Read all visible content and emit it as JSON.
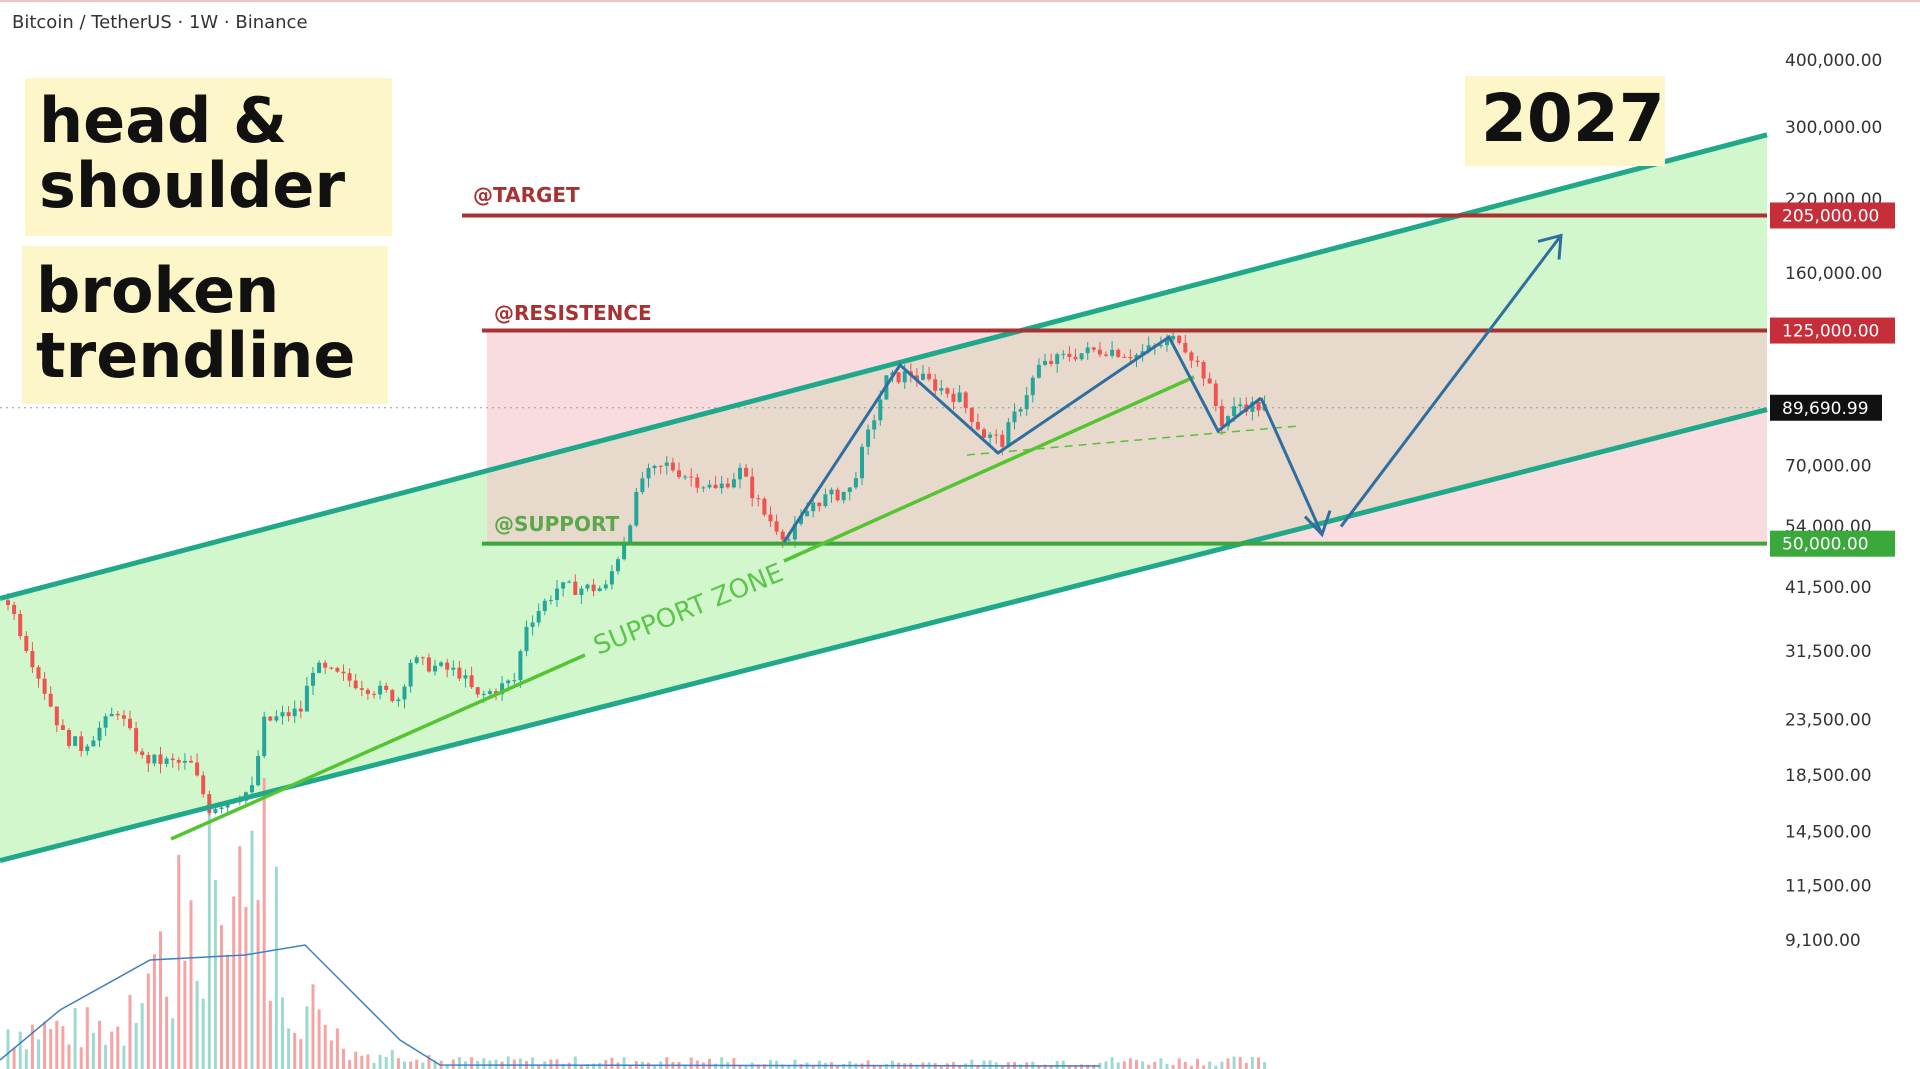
{
  "header": {
    "symbol_title": "Bitcoin / TetherUS · 1W · Binance"
  },
  "notes": {
    "pattern": "head & shoulder",
    "status": "broken trendline",
    "year": "2027"
  },
  "levels": {
    "target": {
      "label": "@TARGET",
      "price": 205000,
      "tag": "205,000.00",
      "color": "#a83232"
    },
    "resistance": {
      "label": "@RESISTENCE",
      "price": 125000,
      "tag": "125,000.00",
      "color": "#a83232"
    },
    "support": {
      "label": "@SUPPORT",
      "price": 50000,
      "tag": "50,000.00",
      "color": "#3aa83a"
    },
    "current": {
      "price": 89690.99,
      "tag": "89,690.99",
      "color": "#111111"
    },
    "support_zone_label": "SUPPORT ZONE"
  },
  "chart_data": {
    "type": "candlestick",
    "title": "Bitcoin / TetherUS · 1W · Binance",
    "y_scale": "log",
    "ylim": [
      8500,
      520000
    ],
    "y_ticks": [
      "400,000.00",
      "300,000.00",
      "220,000.00",
      "160,000.00",
      "70,000.00",
      "54,000.00",
      "41,500.00",
      "31,500.00",
      "23,500.00",
      "18,500.00",
      "14,500.00",
      "11,500.00",
      "9,100.00"
    ],
    "y_tick_values": [
      400000,
      300000,
      220000,
      160000,
      70000,
      54000,
      41500,
      31500,
      23500,
      18500,
      14500,
      11500,
      9100
    ],
    "price_path": [
      {
        "week": 0,
        "price": 39200
      },
      {
        "week": 9,
        "price": 21960
      },
      {
        "week": 12,
        "price": 20850
      },
      {
        "week": 18,
        "price": 24450
      },
      {
        "week": 22,
        "price": 19800
      },
      {
        "week": 30,
        "price": 19300
      },
      {
        "week": 33,
        "price": 16050
      },
      {
        "week": 40,
        "price": 17350
      },
      {
        "week": 42,
        "price": 23200
      },
      {
        "week": 48,
        "price": 24450
      },
      {
        "week": 50,
        "price": 29400
      },
      {
        "week": 56,
        "price": 27800
      },
      {
        "week": 64,
        "price": 25750
      },
      {
        "week": 66,
        "price": 30200
      },
      {
        "week": 74,
        "price": 28700
      },
      {
        "week": 77,
        "price": 25750
      },
      {
        "week": 83,
        "price": 27800
      },
      {
        "week": 85,
        "price": 35400
      },
      {
        "week": 90,
        "price": 41300
      },
      {
        "week": 98,
        "price": 41300
      },
      {
        "week": 101,
        "price": 51000
      },
      {
        "week": 104,
        "price": 66300
      },
      {
        "week": 108,
        "price": 70100
      },
      {
        "week": 116,
        "price": 62950
      },
      {
        "week": 120,
        "price": 68300
      },
      {
        "week": 124,
        "price": 56800
      },
      {
        "week": 128,
        "price": 51000
      },
      {
        "week": 132,
        "price": 59800
      },
      {
        "week": 138,
        "price": 62950
      },
      {
        "week": 144,
        "price": 101000
      },
      {
        "week": 148,
        "price": 104000
      },
      {
        "week": 156,
        "price": 93500
      },
      {
        "week": 160,
        "price": 79800
      },
      {
        "week": 163,
        "price": 77700
      },
      {
        "week": 169,
        "price": 106800
      },
      {
        "week": 174,
        "price": 112500
      },
      {
        "week": 180,
        "price": 115500
      },
      {
        "week": 185,
        "price": 112500
      },
      {
        "week": 192,
        "price": 121600
      },
      {
        "week": 196,
        "price": 104000
      },
      {
        "week": 199,
        "price": 84400
      },
      {
        "week": 202,
        "price": 91100
      },
      {
        "week": 206,
        "price": 89690.99
      }
    ],
    "channel": {
      "upper_start": 39500,
      "upper_end": 290000,
      "lower_start": 12800,
      "lower_end": 89000
    },
    "projection": [
      {
        "label": "drop",
        "price": 52000
      },
      {
        "label": "target",
        "price": 205000
      }
    ],
    "colors": {
      "up": "#26a69a",
      "down": "#ef5350",
      "channel_fill": "#c8f5bf",
      "channel_line": "#1fa88a",
      "zone_fill": "#f5c5cb",
      "projection": "#2f6fa0",
      "trendline": "#55c433"
    }
  }
}
